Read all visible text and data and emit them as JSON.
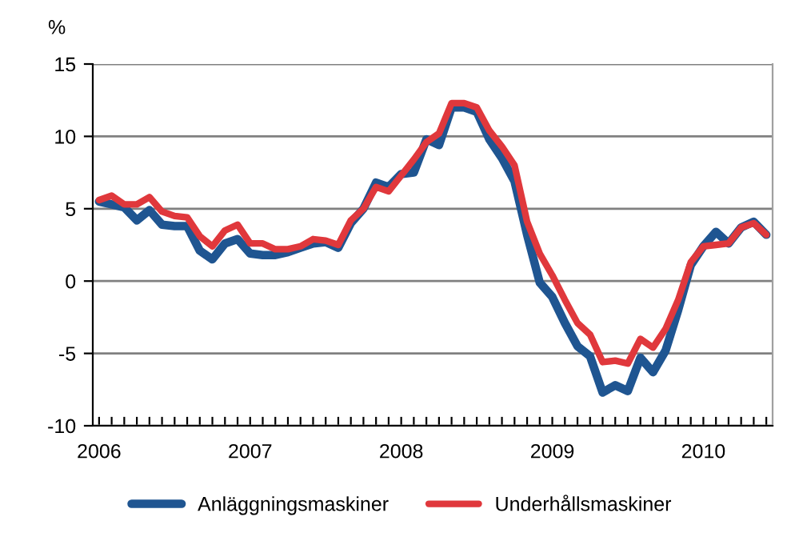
{
  "chart_data": {
    "type": "line",
    "ylabel": "%",
    "categories": [
      "2006",
      null,
      null,
      null,
      null,
      null,
      null,
      null,
      null,
      null,
      null,
      null,
      "2007",
      null,
      null,
      null,
      null,
      null,
      null,
      null,
      null,
      null,
      null,
      null,
      "2008",
      null,
      null,
      null,
      null,
      null,
      null,
      null,
      null,
      null,
      null,
      null,
      "2009",
      null,
      null,
      null,
      null,
      null,
      null,
      null,
      null,
      null,
      null,
      null,
      "2010",
      null,
      null,
      null,
      null,
      null
    ],
    "series": [
      {
        "name": "Anläggningsmaskiner",
        "color": "#1f5591",
        "values": [
          5.5,
          5.3,
          5.1,
          4.2,
          4.9,
          3.9,
          3.8,
          3.8,
          2.1,
          1.5,
          2.6,
          2.9,
          1.9,
          1.8,
          1.8,
          2.0,
          2.3,
          2.6,
          2.7,
          2.3,
          4.0,
          5.0,
          6.8,
          6.5,
          7.4,
          7.5,
          9.8,
          9.4,
          12.0,
          12.0,
          11.7,
          9.8,
          8.5,
          6.9,
          3.2,
          -0.1,
          -1.1,
          -2.9,
          -4.5,
          -5.2,
          -7.7,
          -7.2,
          -7.6,
          -5.3,
          -6.3,
          -4.8,
          -2.0,
          1.1,
          2.4,
          3.4,
          2.6,
          3.7,
          4.1,
          3.2
        ]
      },
      {
        "name": "Underhållsmaskiner",
        "color": "#e0383c",
        "values": [
          5.6,
          5.9,
          5.3,
          5.3,
          5.8,
          4.8,
          4.5,
          4.4,
          3.1,
          2.4,
          3.5,
          3.9,
          2.6,
          2.6,
          2.2,
          2.2,
          2.4,
          2.9,
          2.8,
          2.5,
          4.2,
          5.0,
          6.5,
          6.2,
          7.3,
          8.4,
          9.6,
          10.2,
          12.3,
          12.3,
          12.0,
          10.4,
          9.3,
          8.0,
          4.1,
          1.9,
          0.4,
          -1.3,
          -2.9,
          -3.7,
          -5.6,
          -5.5,
          -5.7,
          -4.0,
          -4.6,
          -3.3,
          -1.3,
          1.3,
          2.4,
          2.5,
          2.6,
          3.7,
          4.0,
          3.2
        ]
      }
    ],
    "ylim": [
      -10,
      15
    ],
    "yticks": [
      -10,
      -5,
      0,
      5,
      10,
      15
    ],
    "grid": "y",
    "legend": "bottom",
    "marker": "none",
    "line_style": "solid"
  }
}
